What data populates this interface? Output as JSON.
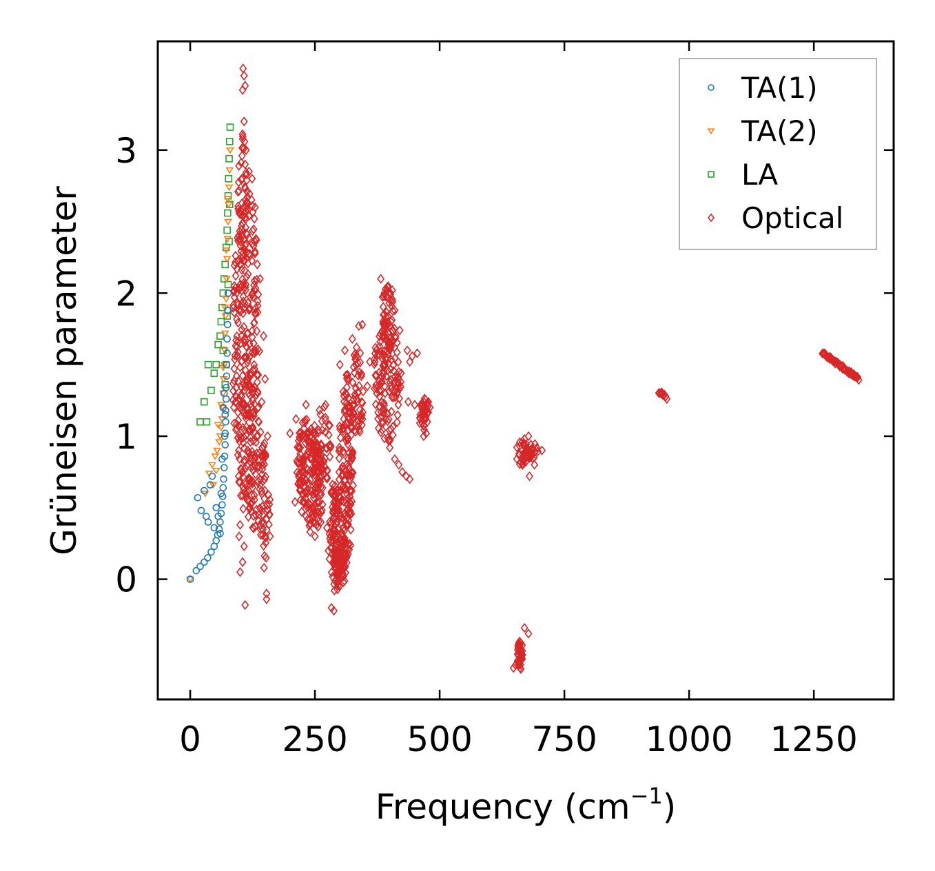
{
  "chart_data": {
    "type": "scatter",
    "title": "",
    "xlabel": "Frequency (cm",
    "xlabel_sup": "−1",
    "xlabel_suffix": ")",
    "ylabel": "Grüneisen parameter",
    "xlim": [
      -65,
      1410
    ],
    "ylim": [
      -0.84,
      3.76
    ],
    "xticks": [
      0,
      250,
      500,
      750,
      1000,
      1250
    ],
    "xtick_labels": [
      "0",
      "250",
      "500",
      "750",
      "1000",
      "1250"
    ],
    "yticks": [
      0,
      1,
      2,
      3
    ],
    "ytick_labels": [
      "0",
      "1",
      "2",
      "3"
    ],
    "grid": false,
    "legend_position": "top-right",
    "series": [
      {
        "name": "TA(1)",
        "marker": "circle",
        "color": "#1f77b4",
        "points": [
          [
            0,
            0
          ],
          [
            12,
            0.06
          ],
          [
            20,
            0.09
          ],
          [
            28,
            0.12
          ],
          [
            35,
            0.15
          ],
          [
            42,
            0.19
          ],
          [
            48,
            0.23
          ],
          [
            52,
            0.27
          ],
          [
            55,
            0.31
          ],
          [
            58,
            0.35
          ],
          [
            60,
            0.4
          ],
          [
            62,
            0.46
          ],
          [
            64,
            0.52
          ],
          [
            65,
            0.58
          ],
          [
            66,
            0.64
          ],
          [
            67,
            0.7
          ],
          [
            68,
            0.78
          ],
          [
            69,
            0.86
          ],
          [
            70,
            0.94
          ],
          [
            70,
            1.02
          ],
          [
            71,
            1.1
          ],
          [
            71,
            1.18
          ],
          [
            72,
            1.26
          ],
          [
            72,
            1.34
          ],
          [
            73,
            1.42
          ],
          [
            73,
            1.5
          ],
          [
            74,
            1.58
          ],
          [
            74,
            1.68
          ],
          [
            75,
            1.78
          ],
          [
            75,
            1.88
          ],
          [
            76,
            2.0
          ],
          [
            15,
            0.57
          ],
          [
            22,
            0.48
          ],
          [
            28,
            0.62
          ],
          [
            32,
            0.44
          ],
          [
            36,
            0.4
          ],
          [
            40,
            0.66
          ],
          [
            44,
            0.72
          ],
          [
            48,
            0.36
          ],
          [
            52,
            0.5
          ],
          [
            56,
            0.44
          ],
          [
            60,
            0.32
          ],
          [
            62,
            0.6
          ],
          [
            64,
            0.84
          ],
          [
            66,
            1.2
          ],
          [
            68,
            1.3
          ],
          [
            69,
            1.0
          ],
          [
            70,
            1.15
          ]
        ]
      },
      {
        "name": "TA(2)",
        "marker": "triangle",
        "color": "#ff7f0e",
        "points": [
          [
            0,
            0
          ],
          [
            30,
            0.6
          ],
          [
            38,
            0.74
          ],
          [
            44,
            0.8
          ],
          [
            50,
            0.86
          ],
          [
            54,
            0.9
          ],
          [
            58,
            0.96
          ],
          [
            60,
            1.0
          ],
          [
            62,
            1.06
          ],
          [
            64,
            1.12
          ],
          [
            65,
            1.2
          ],
          [
            66,
            1.3
          ],
          [
            67,
            1.4
          ],
          [
            68,
            1.5
          ],
          [
            69,
            1.6
          ],
          [
            70,
            1.72
          ],
          [
            71,
            1.84
          ],
          [
            72,
            1.96
          ],
          [
            73,
            2.1
          ],
          [
            74,
            2.24
          ],
          [
            75,
            2.38
          ],
          [
            76,
            2.5
          ],
          [
            77,
            2.62
          ],
          [
            78,
            2.74
          ],
          [
            79,
            2.86
          ],
          [
            80,
            3.0
          ],
          [
            46,
            0.66
          ],
          [
            52,
            0.76
          ],
          [
            56,
            1.08
          ],
          [
            62,
            1.22
          ],
          [
            66,
            1.48
          ],
          [
            70,
            1.9
          ],
          [
            72,
            2.3
          ],
          [
            75,
            2.66
          ]
        ]
      },
      {
        "name": "LA",
        "marker": "square",
        "color": "#2ca02c",
        "points": [
          [
            20,
            1.1
          ],
          [
            28,
            1.24
          ],
          [
            33,
            1.1
          ],
          [
            36,
            1.5
          ],
          [
            42,
            1.32
          ],
          [
            48,
            1.44
          ],
          [
            52,
            1.5
          ],
          [
            56,
            1.64
          ],
          [
            60,
            1.7
          ],
          [
            62,
            1.8
          ],
          [
            64,
            1.9
          ],
          [
            66,
            2.0
          ],
          [
            68,
            2.1
          ],
          [
            70,
            2.2
          ],
          [
            72,
            2.32
          ],
          [
            74,
            2.44
          ],
          [
            75,
            2.56
          ],
          [
            76,
            2.68
          ],
          [
            77,
            2.8
          ],
          [
            78,
            2.94
          ],
          [
            79,
            3.06
          ],
          [
            80,
            3.16
          ],
          [
            66,
            1.6
          ],
          [
            70,
            1.36
          ],
          [
            72,
            1.5
          ],
          [
            74,
            1.84
          ],
          [
            76,
            2.06
          ],
          [
            78,
            2.36
          ],
          [
            79,
            2.62
          ]
        ]
      },
      {
        "name": "Optical",
        "marker": "diamond",
        "color": "#d62728",
        "blobs": [
          {
            "xc": 112,
            "yc": 1.6,
            "xr": 28,
            "yr": 1.15,
            "angle": 0,
            "n": 260
          },
          {
            "xc": 105,
            "yc": 2.6,
            "xr": 10,
            "yr": 0.55,
            "angle": 0,
            "n": 50
          },
          {
            "xc": 125,
            "yc": 0.9,
            "xr": 30,
            "yr": 0.55,
            "angle": 0,
            "n": 90
          },
          {
            "xc": 148,
            "yc": 0.5,
            "xr": 12,
            "yr": 0.4,
            "angle": 0,
            "n": 40
          },
          {
            "xc": 240,
            "yc": 0.72,
            "xr": 28,
            "yr": 0.38,
            "angle": -0.35,
            "n": 180
          },
          {
            "xc": 265,
            "yc": 0.95,
            "xr": 18,
            "yr": 0.3,
            "angle": 0,
            "n": 60
          },
          {
            "xc": 290,
            "yc": 0.3,
            "xr": 12,
            "yr": 0.42,
            "angle": 0,
            "n": 90
          },
          {
            "xc": 312,
            "yc": 0.75,
            "xr": 15,
            "yr": 0.7,
            "angle": 0,
            "n": 160
          },
          {
            "xc": 300,
            "yc": 0.1,
            "xr": 14,
            "yr": 0.2,
            "angle": 0,
            "n": 60
          },
          {
            "xc": 335,
            "yc": 1.3,
            "xr": 12,
            "yr": 0.35,
            "angle": 0,
            "n": 50
          },
          {
            "xc": 395,
            "yc": 1.4,
            "xr": 28,
            "yr": 0.45,
            "angle": 0,
            "n": 150
          },
          {
            "xc": 395,
            "yc": 1.85,
            "xr": 12,
            "yr": 0.22,
            "angle": 0,
            "n": 40
          },
          {
            "xc": 470,
            "yc": 1.15,
            "xr": 12,
            "yr": 0.12,
            "angle": 0,
            "n": 40
          },
          {
            "xc": 665,
            "yc": 0.88,
            "xr": 12,
            "yr": 0.09,
            "angle": 0,
            "n": 30
          },
          {
            "xc": 685,
            "yc": 0.9,
            "xr": 12,
            "yr": 0.06,
            "angle": 0,
            "n": 20
          },
          {
            "xc": 662,
            "yc": -0.53,
            "xr": 7,
            "yr": 0.1,
            "angle": 0,
            "n": 40
          }
        ],
        "lines": [
          {
            "x0": 1268,
            "y0": 1.58,
            "x1": 1340,
            "y1": 1.4,
            "n": 60
          },
          {
            "x0": 940,
            "y0": 1.31,
            "x1": 955,
            "y1": 1.27,
            "n": 10
          }
        ],
        "points": [
          [
            106,
            3.57
          ],
          [
            108,
            3.52
          ],
          [
            105,
            3.42
          ],
          [
            110,
            3.45
          ],
          [
            108,
            3.2
          ],
          [
            109,
            3.06
          ],
          [
            110,
            2.9
          ],
          [
            112,
            3.0
          ],
          [
            118,
            2.85
          ],
          [
            124,
            2.8
          ],
          [
            130,
            2.6
          ],
          [
            140,
            2.1
          ],
          [
            147,
            1.7
          ],
          [
            150,
            1.4
          ],
          [
            155,
            1.0
          ],
          [
            160,
            0.3
          ],
          [
            152,
            0.15
          ],
          [
            148,
            0.08
          ],
          [
            153,
            -0.1
          ],
          [
            153,
            -0.14
          ],
          [
            110,
            -0.18
          ],
          [
            100,
            0.05
          ],
          [
            105,
            0.12
          ],
          [
            98,
            0.3
          ],
          [
            100,
            0.38
          ],
          [
            108,
            0.23
          ],
          [
            200,
            1.02
          ],
          [
            212,
            1.12
          ],
          [
            220,
            0.98
          ],
          [
            232,
            1.22
          ],
          [
            210,
            0.54
          ],
          [
            250,
            0.3
          ],
          [
            262,
            0.4
          ],
          [
            274,
            0.36
          ],
          [
            277,
            0.2
          ],
          [
            282,
            0.22
          ],
          [
            283,
            -0.2
          ],
          [
            288,
            -0.22
          ],
          [
            300,
            1.5
          ],
          [
            310,
            1.6
          ],
          [
            325,
            1.68
          ],
          [
            338,
            1.77
          ],
          [
            345,
            1.78
          ],
          [
            360,
            1.52
          ],
          [
            355,
            1.35
          ],
          [
            370,
            1.52
          ],
          [
            382,
            2.1
          ],
          [
            405,
            2.02
          ],
          [
            410,
            1.88
          ],
          [
            420,
            1.74
          ],
          [
            435,
            1.6
          ],
          [
            440,
            1.52
          ],
          [
            445,
            1.56
          ],
          [
            455,
            1.58
          ],
          [
            437,
            1.24
          ],
          [
            450,
            1.22
          ],
          [
            468,
            1.0
          ],
          [
            473,
            1.02
          ],
          [
            400,
            0.92
          ],
          [
            410,
            0.84
          ],
          [
            418,
            0.8
          ],
          [
            425,
            0.75
          ],
          [
            433,
            0.72
          ],
          [
            440,
            0.7
          ],
          [
            648,
            -0.62
          ],
          [
            652,
            -0.6
          ],
          [
            670,
            -0.34
          ],
          [
            678,
            -0.38
          ],
          [
            680,
            0.72
          ],
          [
            690,
            0.8
          ],
          [
            705,
            0.9
          ],
          [
            678,
            1.0
          ],
          [
            670,
            0.98
          ]
        ]
      }
    ]
  }
}
